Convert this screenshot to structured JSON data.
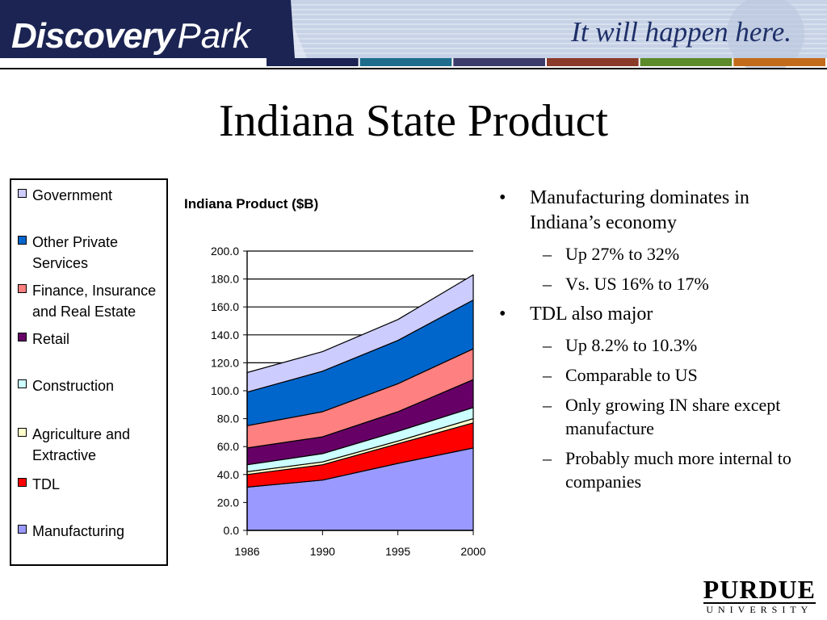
{
  "header": {
    "logo_text_1": "Discovery",
    "logo_text_2": "Park",
    "tagline": "It will happen here."
  },
  "slide": {
    "title": "Indiana State Product",
    "bullets": [
      {
        "text": "Manufacturing dominates in Indiana’s economy",
        "sub": [
          "Up 27% to 32%",
          "Vs. US 16% to 17%"
        ]
      },
      {
        "text": "TDL also major",
        "sub": [
          "Up 8.2% to 10.3%",
          "Comparable to US",
          "Only growing IN share except manufacture",
          "Probably much more internal to companies"
        ]
      }
    ],
    "bullet_mark": "•",
    "sub_mark": "–"
  },
  "footer": {
    "brand_1": "PURDUE",
    "brand_2": "UNIVERSITY"
  },
  "colors": {
    "banner_navy": "#1b2452",
    "banner_blue": "#8fa3c9",
    "stripes": [
      "#1b2452",
      "#1f6d8c",
      "#3c3c6b",
      "#8a3b2a",
      "#5d8a2a",
      "#c26b1a"
    ]
  },
  "chart_data": {
    "type": "area",
    "stacked": true,
    "title": "Indiana Product ($B)",
    "x": [
      "1986",
      "1990",
      "1995",
      "2000"
    ],
    "ylim": [
      0,
      200
    ],
    "yticks": [
      "0.0",
      "20.0",
      "40.0",
      "60.0",
      "80.0",
      "100.0",
      "120.0",
      "140.0",
      "160.0",
      "180.0",
      "200.0"
    ],
    "grid": true,
    "legend_position": "left",
    "legend_order": [
      "Government",
      "Other Private Services",
      "Finance, Insurance and Real Estate",
      "Retail",
      "Construction",
      "Agriculture and Extractive",
      "TDL",
      "Manufacturing"
    ],
    "series": [
      {
        "name": "Manufacturing",
        "color": "#9999ff",
        "values": [
          31,
          36,
          48,
          59
        ]
      },
      {
        "name": "TDL",
        "color": "#ff0000",
        "values": [
          9,
          11,
          14,
          18
        ]
      },
      {
        "name": "Agriculture and Extractive",
        "color": "#ffffcc",
        "values": [
          2,
          2,
          2,
          3
        ]
      },
      {
        "name": "Construction",
        "color": "#ccffff",
        "values": [
          5,
          6,
          7,
          8
        ]
      },
      {
        "name": "Retail",
        "color": "#660066",
        "values": [
          12,
          12,
          14,
          20
        ]
      },
      {
        "name": "Finance, Insurance and Real Estate",
        "color": "#ff8080",
        "values": [
          16,
          18,
          20,
          22
        ]
      },
      {
        "name": "Other Private Services",
        "color": "#0066cc",
        "values": [
          24,
          29,
          31,
          35
        ]
      },
      {
        "name": "Government",
        "color": "#ccccff",
        "values": [
          14,
          14,
          15,
          18
        ]
      }
    ]
  }
}
